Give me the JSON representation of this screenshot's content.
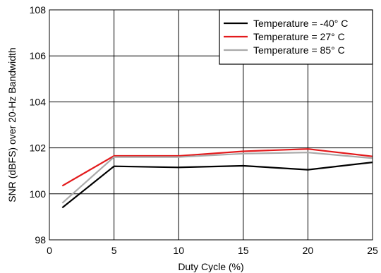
{
  "chart_data": {
    "type": "line",
    "xlabel": "Duty Cycle (%)",
    "ylabel": "SNR (dBFS) over 20-Hz Bandwidth",
    "xlim": [
      0,
      25
    ],
    "ylim": [
      98,
      108
    ],
    "xticks": [
      0,
      5,
      10,
      15,
      20,
      25
    ],
    "yticks": [
      98,
      100,
      102,
      104,
      106,
      108
    ],
    "grid": true,
    "legend_position": "top-right",
    "series": [
      {
        "name": "Temperature = -40° C",
        "color": "#000000",
        "x": [
          1,
          5,
          10,
          15,
          20,
          25
        ],
        "values": [
          99.4,
          101.2,
          101.15,
          101.22,
          101.05,
          101.37
        ]
      },
      {
        "name": "Temperature = 27° C",
        "color": "#e31a1c",
        "x": [
          1,
          5,
          10,
          15,
          20,
          25
        ],
        "values": [
          100.35,
          101.65,
          101.65,
          101.85,
          101.95,
          101.63
        ]
      },
      {
        "name": "Temperature = 85° C",
        "color": "#aaaaaa",
        "x": [
          1,
          5,
          10,
          15,
          20,
          25
        ],
        "values": [
          99.6,
          101.6,
          101.6,
          101.75,
          101.8,
          101.55
        ]
      }
    ]
  }
}
